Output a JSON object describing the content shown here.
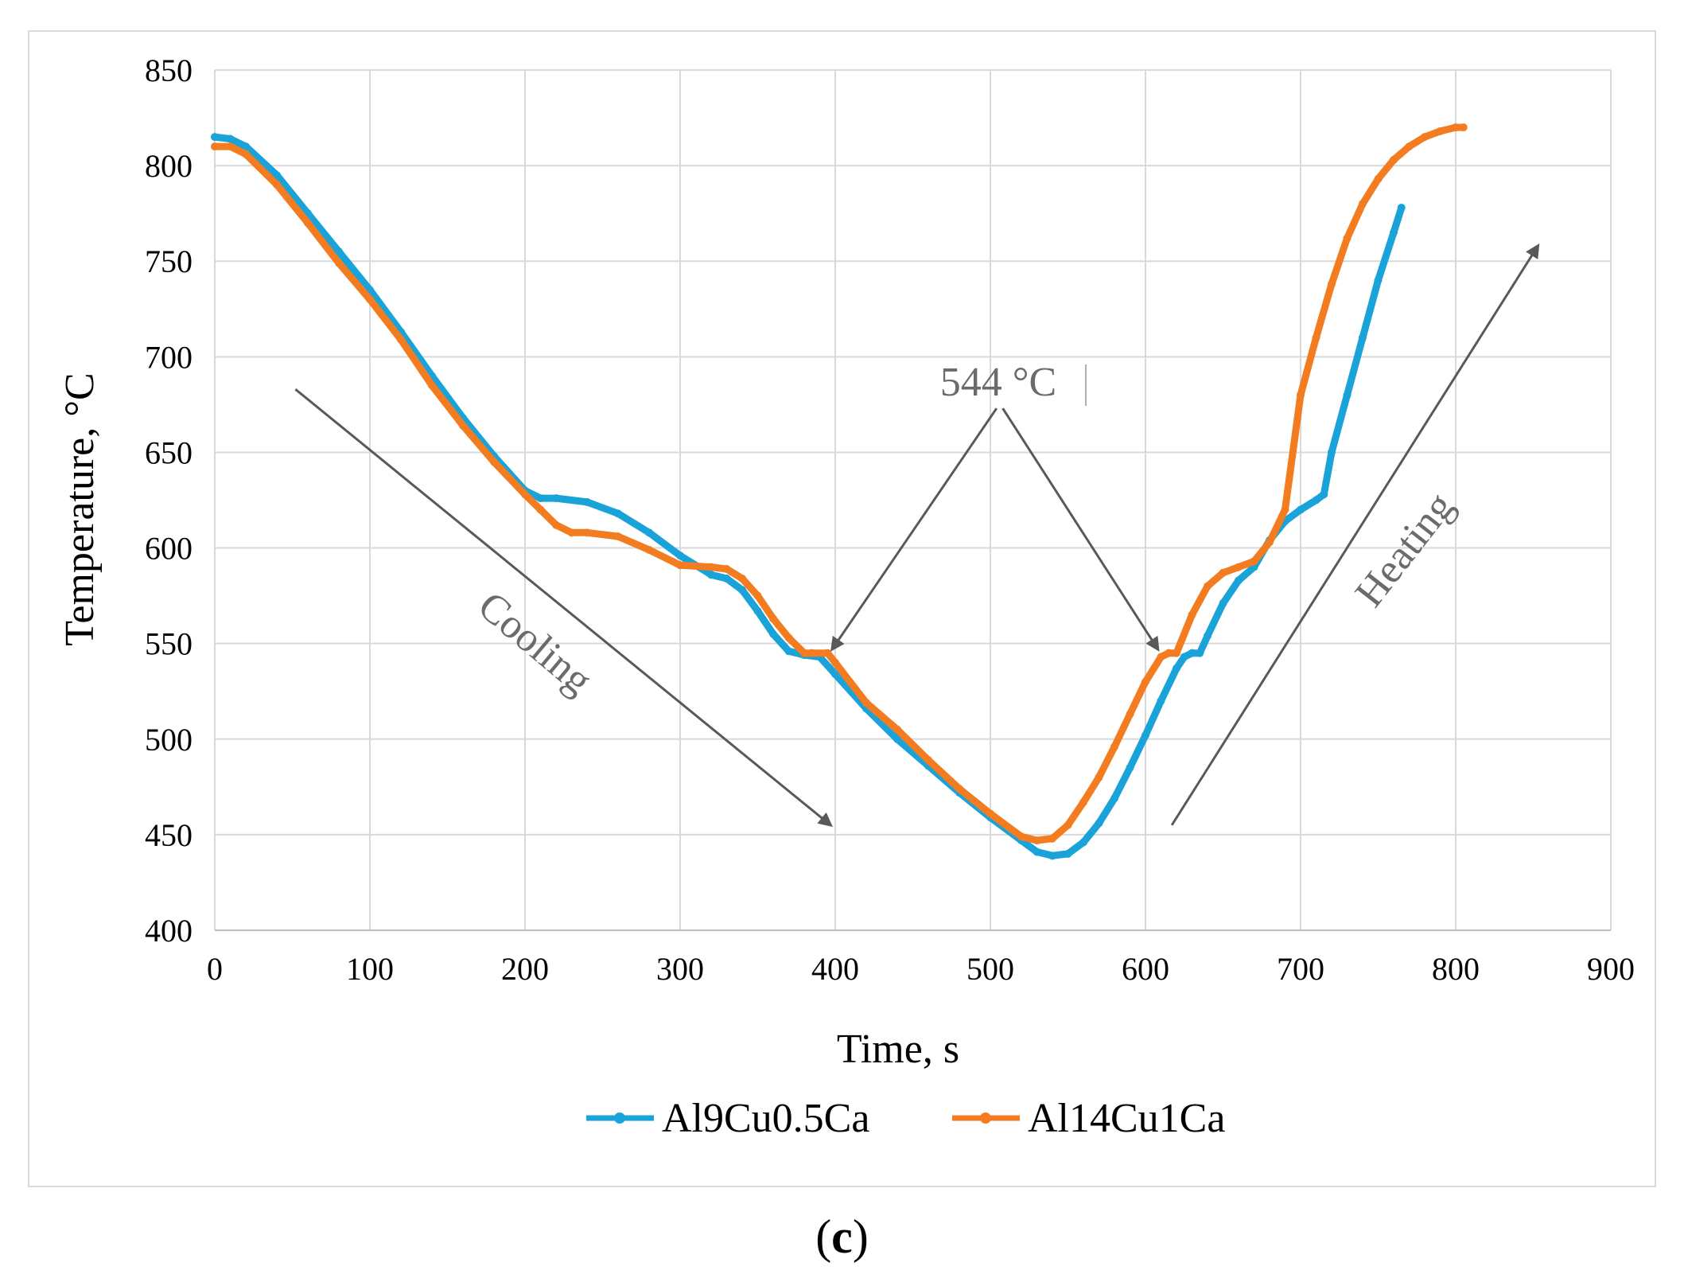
{
  "caption": {
    "open": "(",
    "letter": "c",
    "close": ")"
  },
  "chart_data": {
    "type": "line",
    "xlabel": "Time, s",
    "ylabel": "Temperature, °C",
    "xlim": [
      0,
      900
    ],
    "ylim": [
      400,
      850
    ],
    "xticks": [
      0,
      100,
      200,
      300,
      400,
      500,
      600,
      700,
      800,
      900
    ],
    "yticks": [
      400,
      450,
      500,
      550,
      600,
      650,
      700,
      750,
      800,
      850
    ],
    "grid": true,
    "legend_position": "bottom",
    "series": [
      {
        "name": "Al9Cu0.5Ca",
        "color": "#1aa3d9",
        "x": [
          0,
          10,
          20,
          40,
          60,
          80,
          100,
          120,
          140,
          160,
          180,
          200,
          210,
          220,
          240,
          260,
          280,
          300,
          320,
          330,
          340,
          350,
          360,
          370,
          380,
          390,
          400,
          420,
          440,
          460,
          480,
          500,
          520,
          530,
          540,
          550,
          560,
          570,
          580,
          590,
          600,
          610,
          620,
          625,
          630,
          635,
          640,
          650,
          660,
          670,
          680,
          690,
          700,
          710,
          715,
          720,
          730,
          740,
          750,
          760,
          765
        ],
        "y": [
          815,
          814,
          810,
          795,
          775,
          755,
          735,
          713,
          690,
          668,
          648,
          630,
          626,
          626,
          624,
          618,
          608,
          596,
          586,
          584,
          578,
          567,
          555,
          546,
          544,
          543,
          534,
          516,
          500,
          486,
          472,
          459,
          447,
          441,
          439,
          440,
          446,
          456,
          469,
          485,
          502,
          520,
          537,
          543,
          545,
          545,
          554,
          571,
          583,
          590,
          604,
          614,
          620,
          625,
          628,
          650,
          680,
          710,
          740,
          765,
          778
        ]
      },
      {
        "name": "Al14Cu1Ca",
        "color": "#f47c20",
        "x": [
          0,
          10,
          20,
          40,
          60,
          80,
          100,
          120,
          140,
          160,
          180,
          200,
          210,
          220,
          230,
          240,
          260,
          280,
          300,
          320,
          330,
          340,
          350,
          360,
          370,
          380,
          385,
          395,
          400,
          420,
          440,
          460,
          480,
          500,
          520,
          530,
          540,
          550,
          560,
          570,
          580,
          590,
          600,
          610,
          615,
          620,
          630,
          640,
          650,
          660,
          670,
          680,
          690,
          700,
          710,
          720,
          730,
          740,
          750,
          760,
          770,
          780,
          790,
          800,
          805
        ],
        "y": [
          810,
          810,
          806,
          790,
          770,
          749,
          730,
          709,
          685,
          664,
          645,
          628,
          620,
          612,
          608,
          608,
          606,
          599,
          591,
          590,
          589,
          584,
          575,
          563,
          553,
          545,
          545,
          545,
          540,
          519,
          505,
          489,
          474,
          461,
          449,
          447,
          448,
          455,
          467,
          480,
          496,
          513,
          530,
          543,
          545,
          545,
          565,
          580,
          587,
          590,
          593,
          603,
          620,
          680,
          710,
          738,
          762,
          780,
          793,
          803,
          810,
          815,
          818,
          820,
          820
        ]
      }
    ],
    "annotations": {
      "temperature_label": "544 °C",
      "cooling_label": "Cooling",
      "heating_label": "Heating"
    },
    "annotation_arrows": [
      {
        "name": "cooling-arrow",
        "from": [
          52,
          683
        ],
        "to": [
          397,
          455
        ]
      },
      {
        "name": "heating-arrow",
        "from": [
          617,
          455
        ],
        "to": [
          853,
          758
        ]
      },
      {
        "name": "pointer-arrow-left",
        "from": [
          504,
          673
        ],
        "to": [
          398,
          547
        ]
      },
      {
        "name": "pointer-arrow-right",
        "from": [
          508,
          673
        ],
        "to": [
          608,
          547
        ]
      }
    ]
  }
}
